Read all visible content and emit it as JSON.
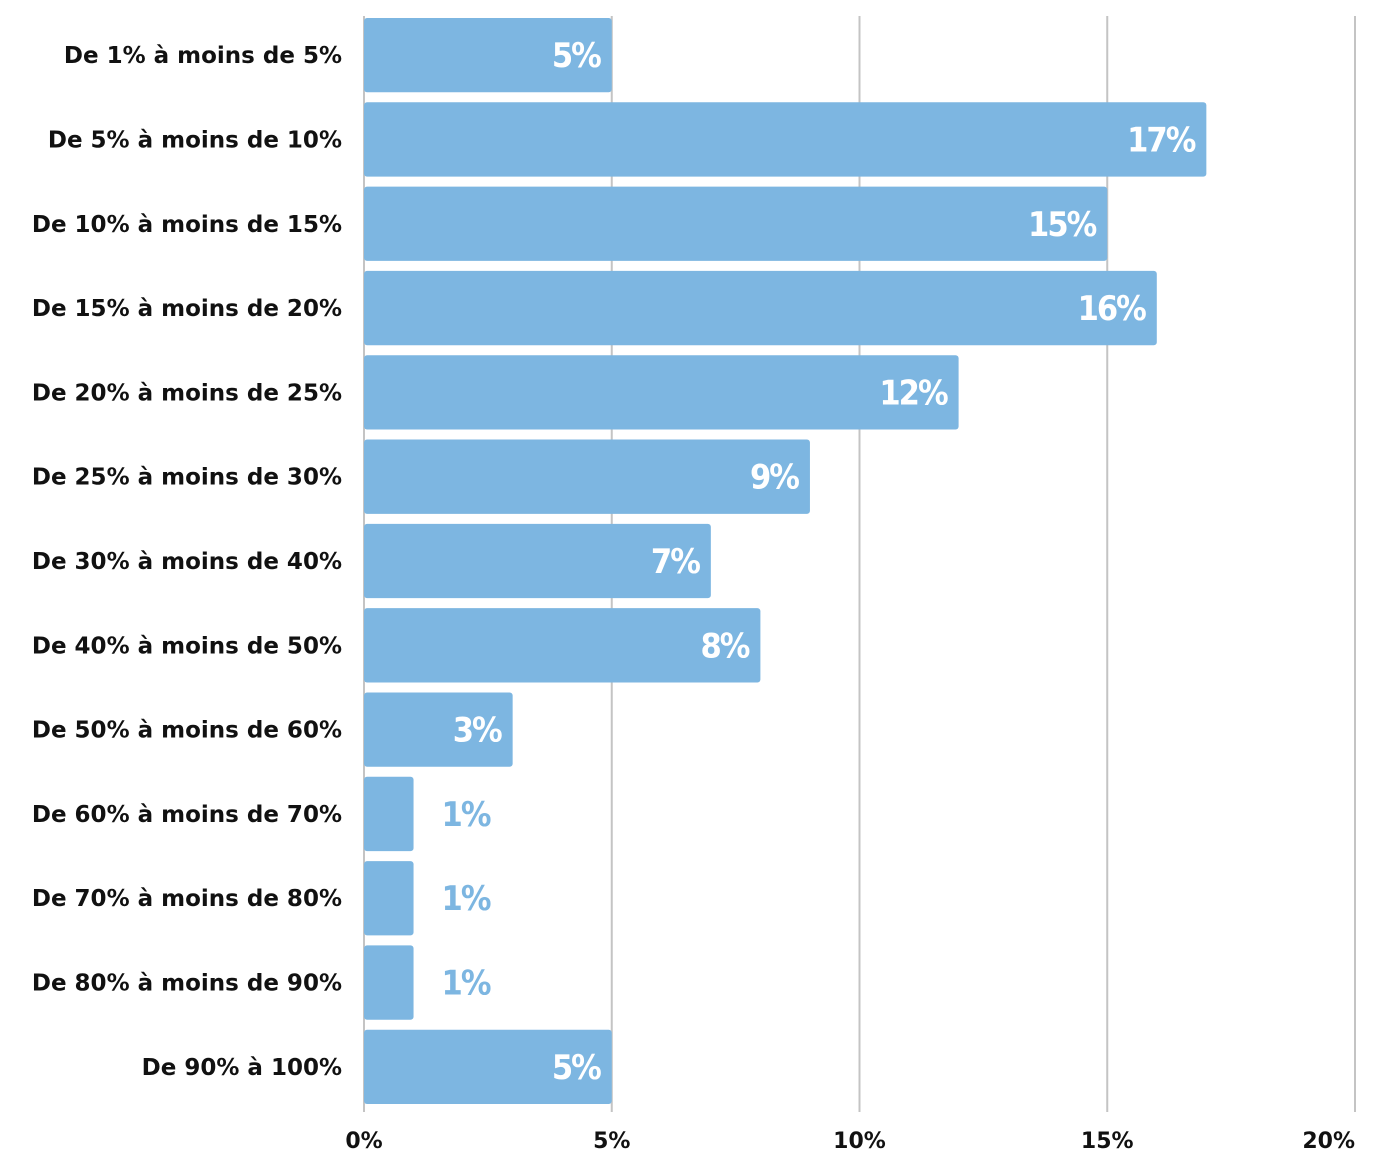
{
  "chart_data": {
    "type": "bar",
    "orientation": "horizontal",
    "categories": [
      "De 1% à moins de 5%",
      "De 5% à moins de 10%",
      "De 10% à moins de 15%",
      "De 15% à moins de 20%",
      "De 20% à moins de 25%",
      "De 25% à moins de 30%",
      "De 30% à moins de 40%",
      "De 40% à moins de 50%",
      "De 50% à moins de 60%",
      "De 60% à moins de 70%",
      "De 70% à moins de 80%",
      "De 80% à moins de 90%",
      "De 90% à 100%"
    ],
    "values": [
      5,
      17,
      15,
      16,
      12,
      9,
      7,
      8,
      3,
      1,
      1,
      1,
      5
    ],
    "value_labels": [
      "5%",
      "17%",
      "15%",
      "16%",
      "12%",
      "9%",
      "7%",
      "8%",
      "3%",
      "1%",
      "1%",
      "1%",
      "5%"
    ],
    "xlim": [
      0,
      20
    ],
    "x_ticks": [
      0,
      5,
      10,
      15,
      20
    ],
    "x_tick_labels": [
      "0%",
      "5%",
      "10%",
      "15%",
      "20%"
    ],
    "grid": "vertical",
    "legend": "none",
    "colors": {
      "bar": "#7db6e1",
      "label_inside": "#ffffff",
      "label_outside": "#7db6e1",
      "grid": "#c4c4c4",
      "text": "#111111"
    }
  }
}
